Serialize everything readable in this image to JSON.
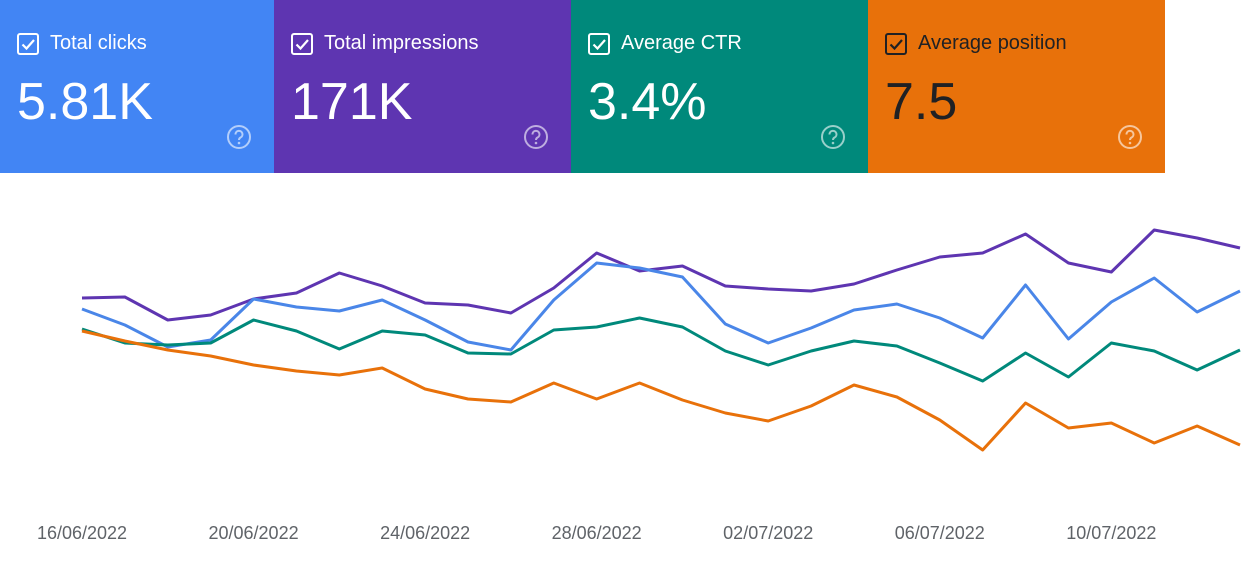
{
  "cards": [
    {
      "label": "Total clicks",
      "value": "5.81K",
      "color": "#4285f4",
      "text_color": "#ffffff"
    },
    {
      "label": "Total impressions",
      "value": "171K",
      "color": "#5e35b1",
      "text_color": "#ffffff"
    },
    {
      "label": "Average CTR",
      "value": "3.4%",
      "color": "#00897b",
      "text_color": "#ffffff"
    },
    {
      "label": "Average position",
      "value": "7.5",
      "color": "#e8710a",
      "text_color": "#202124"
    }
  ],
  "chart_data": {
    "type": "line",
    "categories": [
      "16/06/2022",
      null,
      null,
      null,
      "20/06/2022",
      null,
      null,
      null,
      "24/06/2022",
      null,
      null,
      null,
      "28/06/2022",
      null,
      null,
      null,
      "02/07/2022",
      null,
      null,
      null,
      "06/07/2022",
      null,
      null,
      null,
      "10/07/2022",
      null,
      null,
      null
    ],
    "series": [
      {
        "color": "#5e35b1",
        "values": [
          202,
          203,
          180,
          185,
          201,
          207,
          227,
          214,
          197,
          195,
          187,
          212,
          247,
          229,
          234,
          214,
          211,
          209,
          216,
          230,
          243,
          247,
          266,
          237,
          228,
          270,
          262,
          252
        ]
      },
      {
        "color": "#4a86e8",
        "values": [
          191,
          175,
          153,
          160,
          201,
          193,
          189,
          200,
          180,
          158,
          150,
          200,
          237,
          232,
          223,
          176,
          157,
          172,
          190,
          196,
          182,
          162,
          215,
          161,
          198,
          222,
          188,
          209
        ]
      },
      {
        "color": "#00897b",
        "values": [
          171,
          157,
          155,
          157,
          180,
          169,
          151,
          169,
          165,
          147,
          146,
          170,
          173,
          182,
          173,
          149,
          135,
          149,
          159,
          154,
          137,
          119,
          147,
          123,
          157,
          149,
          130,
          150
        ]
      },
      {
        "color": "#e8710a",
        "values": [
          169,
          159,
          150,
          144,
          135,
          129,
          125,
          132,
          111,
          101,
          98,
          117,
          101,
          117,
          100,
          87,
          79,
          94,
          115,
          103,
          80,
          50,
          97,
          72,
          77,
          57,
          74,
          55
        ]
      }
    ],
    "ylim": [
      20,
      300
    ],
    "grid": false
  }
}
